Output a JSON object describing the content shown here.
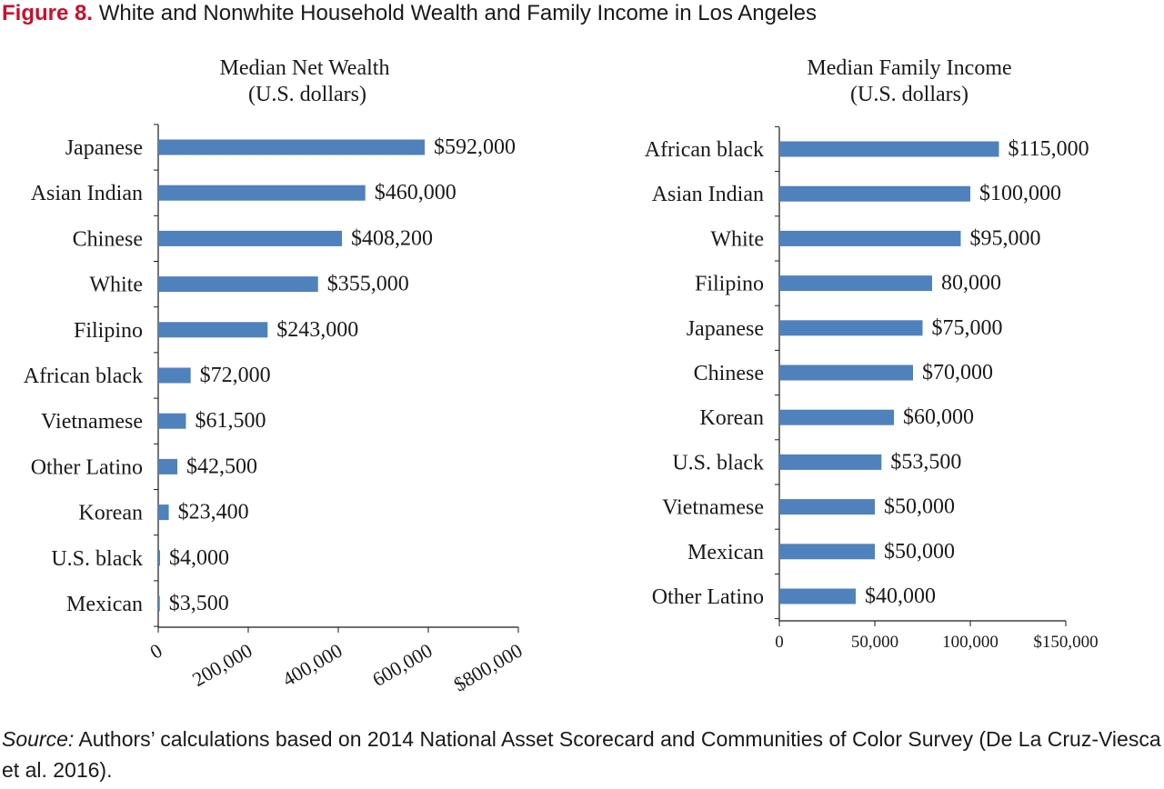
{
  "figure": {
    "label": "Figure 8.",
    "title": "White and Nonwhite Household Wealth and Family Income in Los Angeles"
  },
  "source": {
    "label": "Source:",
    "text": "Authors’ calculations based on 2014 National Asset Scorecard and Communities of Color Survey (De La Cruz-Viesca et al. 2016)."
  },
  "colors": {
    "bar": "#4f81bd",
    "axis": "#1a1a1a",
    "figure_label": "#c8102e"
  },
  "chart_data": [
    {
      "type": "bar",
      "orientation": "horizontal",
      "title": "Median Net Wealth",
      "subtitle": "(U.S. dollars)",
      "categories": [
        "Japanese",
        "Asian Indian",
        "Chinese",
        "White",
        "Filipino",
        "African black",
        "Vietnamese",
        "Other Latino",
        "Korean",
        "U.S. black",
        "Mexican"
      ],
      "values": [
        592000,
        460000,
        408200,
        355000,
        243000,
        72000,
        61500,
        42500,
        23400,
        4000,
        3500
      ],
      "data_labels": [
        "$592,000",
        "$460,000",
        "$408,200",
        "$355,000",
        "$243,000",
        "$72,000",
        "$61,500",
        "$42,500",
        "$23,400",
        "$4,000",
        "$3,500"
      ],
      "xlim": [
        0,
        800000
      ],
      "ticks": [
        0,
        200000,
        400000,
        600000,
        800000
      ],
      "tick_labels": [
        "0",
        "200,000",
        "400,000",
        "600,000",
        "$800,000"
      ],
      "tick_label_rotation": "diagonal",
      "grid": false,
      "legend": "none"
    },
    {
      "type": "bar",
      "orientation": "horizontal",
      "title": "Median Family Income",
      "subtitle": "(U.S. dollars)",
      "categories": [
        "African black",
        "Asian Indian",
        "White",
        "Filipino",
        "Japanese",
        "Chinese",
        "Korean",
        "U.S. black",
        "Vietnamese",
        "Mexican",
        "Other Latino"
      ],
      "values": [
        115000,
        100000,
        95000,
        80000,
        75000,
        70000,
        60000,
        53500,
        50000,
        50000,
        40000
      ],
      "data_labels": [
        "$115,000",
        "$100,000",
        "$95,000",
        "80,000",
        "$75,000",
        "$70,000",
        "$60,000",
        "$53,500",
        "$50,000",
        "$50,000",
        "$40,000"
      ],
      "xlim": [
        0,
        150000
      ],
      "ticks": [
        0,
        50000,
        100000,
        150000
      ],
      "tick_labels": [
        "0",
        "50,000",
        "100,000",
        "$150,000"
      ],
      "tick_label_rotation": "horizontal",
      "grid": false,
      "legend": "none"
    }
  ]
}
